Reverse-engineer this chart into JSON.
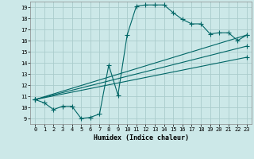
{
  "xlabel": "Humidex (Indice chaleur)",
  "bg_color": "#cce8e8",
  "grid_color": "#aacccc",
  "line_color": "#006666",
  "xlim": [
    -0.5,
    23.5
  ],
  "ylim": [
    8.5,
    19.5
  ],
  "xticks": [
    0,
    1,
    2,
    3,
    4,
    5,
    6,
    7,
    8,
    9,
    10,
    11,
    12,
    13,
    14,
    15,
    16,
    17,
    18,
    19,
    20,
    21,
    22,
    23
  ],
  "yticks": [
    9,
    10,
    11,
    12,
    13,
    14,
    15,
    16,
    17,
    18,
    19
  ],
  "series_main": {
    "x": [
      0,
      1,
      2,
      3,
      4,
      5,
      6,
      7,
      8,
      9,
      10,
      11,
      12,
      13,
      14,
      15,
      16,
      17,
      18,
      19,
      20,
      21,
      22,
      23
    ],
    "y": [
      10.7,
      10.4,
      9.8,
      10.1,
      10.1,
      9.0,
      9.1,
      9.4,
      13.8,
      11.1,
      16.5,
      19.1,
      19.2,
      19.2,
      19.2,
      18.5,
      17.9,
      17.5,
      17.5,
      16.6,
      16.7,
      16.7,
      16.0,
      16.5
    ]
  },
  "series_lines": [
    {
      "x": [
        0,
        23
      ],
      "y": [
        10.7,
        16.5
      ]
    },
    {
      "x": [
        0,
        23
      ],
      "y": [
        10.7,
        15.5
      ]
    },
    {
      "x": [
        0,
        23
      ],
      "y": [
        10.7,
        14.5
      ]
    }
  ]
}
